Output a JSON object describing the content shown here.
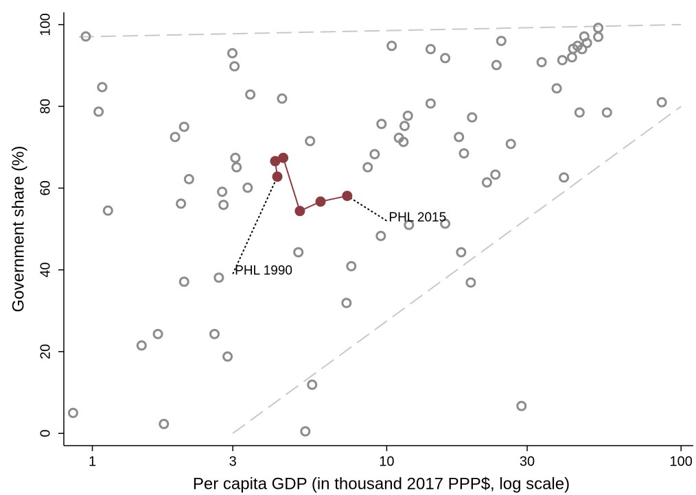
{
  "chart_data": {
    "type": "scatter",
    "x_label": "Per capita GDP (in thousand 2017 PPP$, log scale)",
    "y_label": "Government share (%)",
    "x_log": true,
    "xlim": [
      0.8,
      110
    ],
    "ylim": [
      -3,
      103
    ],
    "xticks": [
      1,
      3,
      10,
      30,
      100
    ],
    "yticks": [
      0,
      20,
      40,
      60,
      80,
      100
    ],
    "points": {
      "color": "#8c8c8c",
      "x": [
        0.95,
        0.86,
        1.08,
        1.05,
        1.13,
        1.47,
        1.67,
        1.75,
        1.91,
        2.05,
        2.0,
        2.13,
        2.05,
        2.6,
        2.69,
        2.76,
        2.79,
        2.88,
        2.99,
        3.04,
        3.06,
        3.09,
        3.37,
        3.44,
        4.41,
        5.01,
        5.29,
        5.49,
        5.58,
        7.3,
        7.58,
        8.62,
        9.1,
        9.6,
        9.55,
        10.4,
        11.0,
        11.5,
        11.4,
        11.8,
        11.9,
        14.1,
        14.1,
        15.8,
        15.8,
        17.6,
        17.9,
        18.3,
        19.5,
        19.3,
        21.9,
        23.4,
        23.6,
        24.5,
        26.4,
        28.7,
        33.6,
        37.8,
        39.5,
        40,
        42.6,
        43,
        44.5,
        45.2,
        46.1,
        46.9,
        47.9,
        52.3,
        52.3,
        56,
        86
      ],
      "y": [
        97.1,
        5,
        84.7,
        78.7,
        54.5,
        21.5,
        24.3,
        2.3,
        72.5,
        75,
        56.2,
        62.2,
        37.1,
        24.3,
        38.1,
        59.1,
        55.9,
        18.8,
        93,
        89.8,
        67.4,
        65.1,
        60.1,
        82.9,
        81.9,
        44.3,
        0.5,
        71.5,
        11.9,
        31.9,
        40.9,
        65.1,
        68.3,
        75.7,
        48.3,
        94.8,
        72.3,
        75.2,
        71.3,
        77.7,
        51,
        94,
        80.7,
        91.8,
        51.3,
        72.5,
        44.3,
        68.5,
        77.3,
        36.9,
        61.4,
        63.3,
        90.1,
        96,
        70.8,
        6.7,
        90.8,
        84.4,
        91.3,
        62.6,
        92,
        94.1,
        94.8,
        78.5,
        94,
        97.1,
        95.5,
        97,
        99.2,
        78.5,
        81
      ]
    },
    "highlight": {
      "color": "#8b3a3f",
      "x": [
        4.25,
        4.18,
        4.45,
        5.07,
        5.96,
        7.34
      ],
      "y": [
        62.8,
        66.6,
        67.4,
        54.4,
        56.7,
        58.1
      ]
    },
    "reference_lines": [
      {
        "x": [
          0.9,
          100
        ],
        "y": [
          97,
          100
        ]
      },
      {
        "x": [
          3,
          100
        ],
        "y": [
          0,
          80
        ]
      }
    ],
    "annotations": [
      {
        "text": "PHL 1990",
        "x": 3.0,
        "y": 39
      },
      {
        "text": "PHL 2015",
        "x": 10.0,
        "y": 52
      }
    ]
  }
}
